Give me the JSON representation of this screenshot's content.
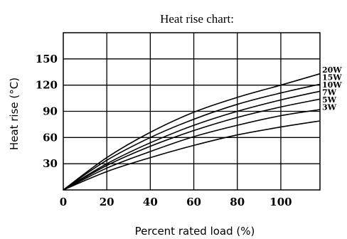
{
  "chart_data": {
    "type": "line",
    "title": "Heat rise chart:",
    "xlabel": "Percent rated load (%)",
    "ylabel": "Heat rise (°C)",
    "xlim": [
      0,
      118
    ],
    "ylim": [
      0,
      180
    ],
    "x_ticks": [
      "0",
      "20",
      "40",
      "60",
      "80",
      "100"
    ],
    "y_ticks": [
      "30",
      "60",
      "90",
      "120",
      "150"
    ],
    "grid": true,
    "x": [
      0,
      20,
      40,
      60,
      80,
      100,
      118
    ],
    "series": [
      {
        "name": "20W",
        "values": [
          0,
          37,
          66,
          89,
          106,
          120,
          133
        ]
      },
      {
        "name": "15W",
        "values": [
          0,
          34,
          60,
          81,
          98,
          111,
          121
        ]
      },
      {
        "name": "10W",
        "values": [
          0,
          30,
          54,
          74,
          90,
          103,
          113
        ]
      },
      {
        "name": "7W",
        "values": [
          0,
          28,
          50,
          68,
          83,
          95,
          104
        ]
      },
      {
        "name": "5W",
        "values": [
          0,
          25,
          44,
          61,
          74,
          85,
          92
        ]
      },
      {
        "name": "3W",
        "values": [
          0,
          21,
          37,
          51,
          63,
          72,
          79
        ]
      }
    ]
  }
}
